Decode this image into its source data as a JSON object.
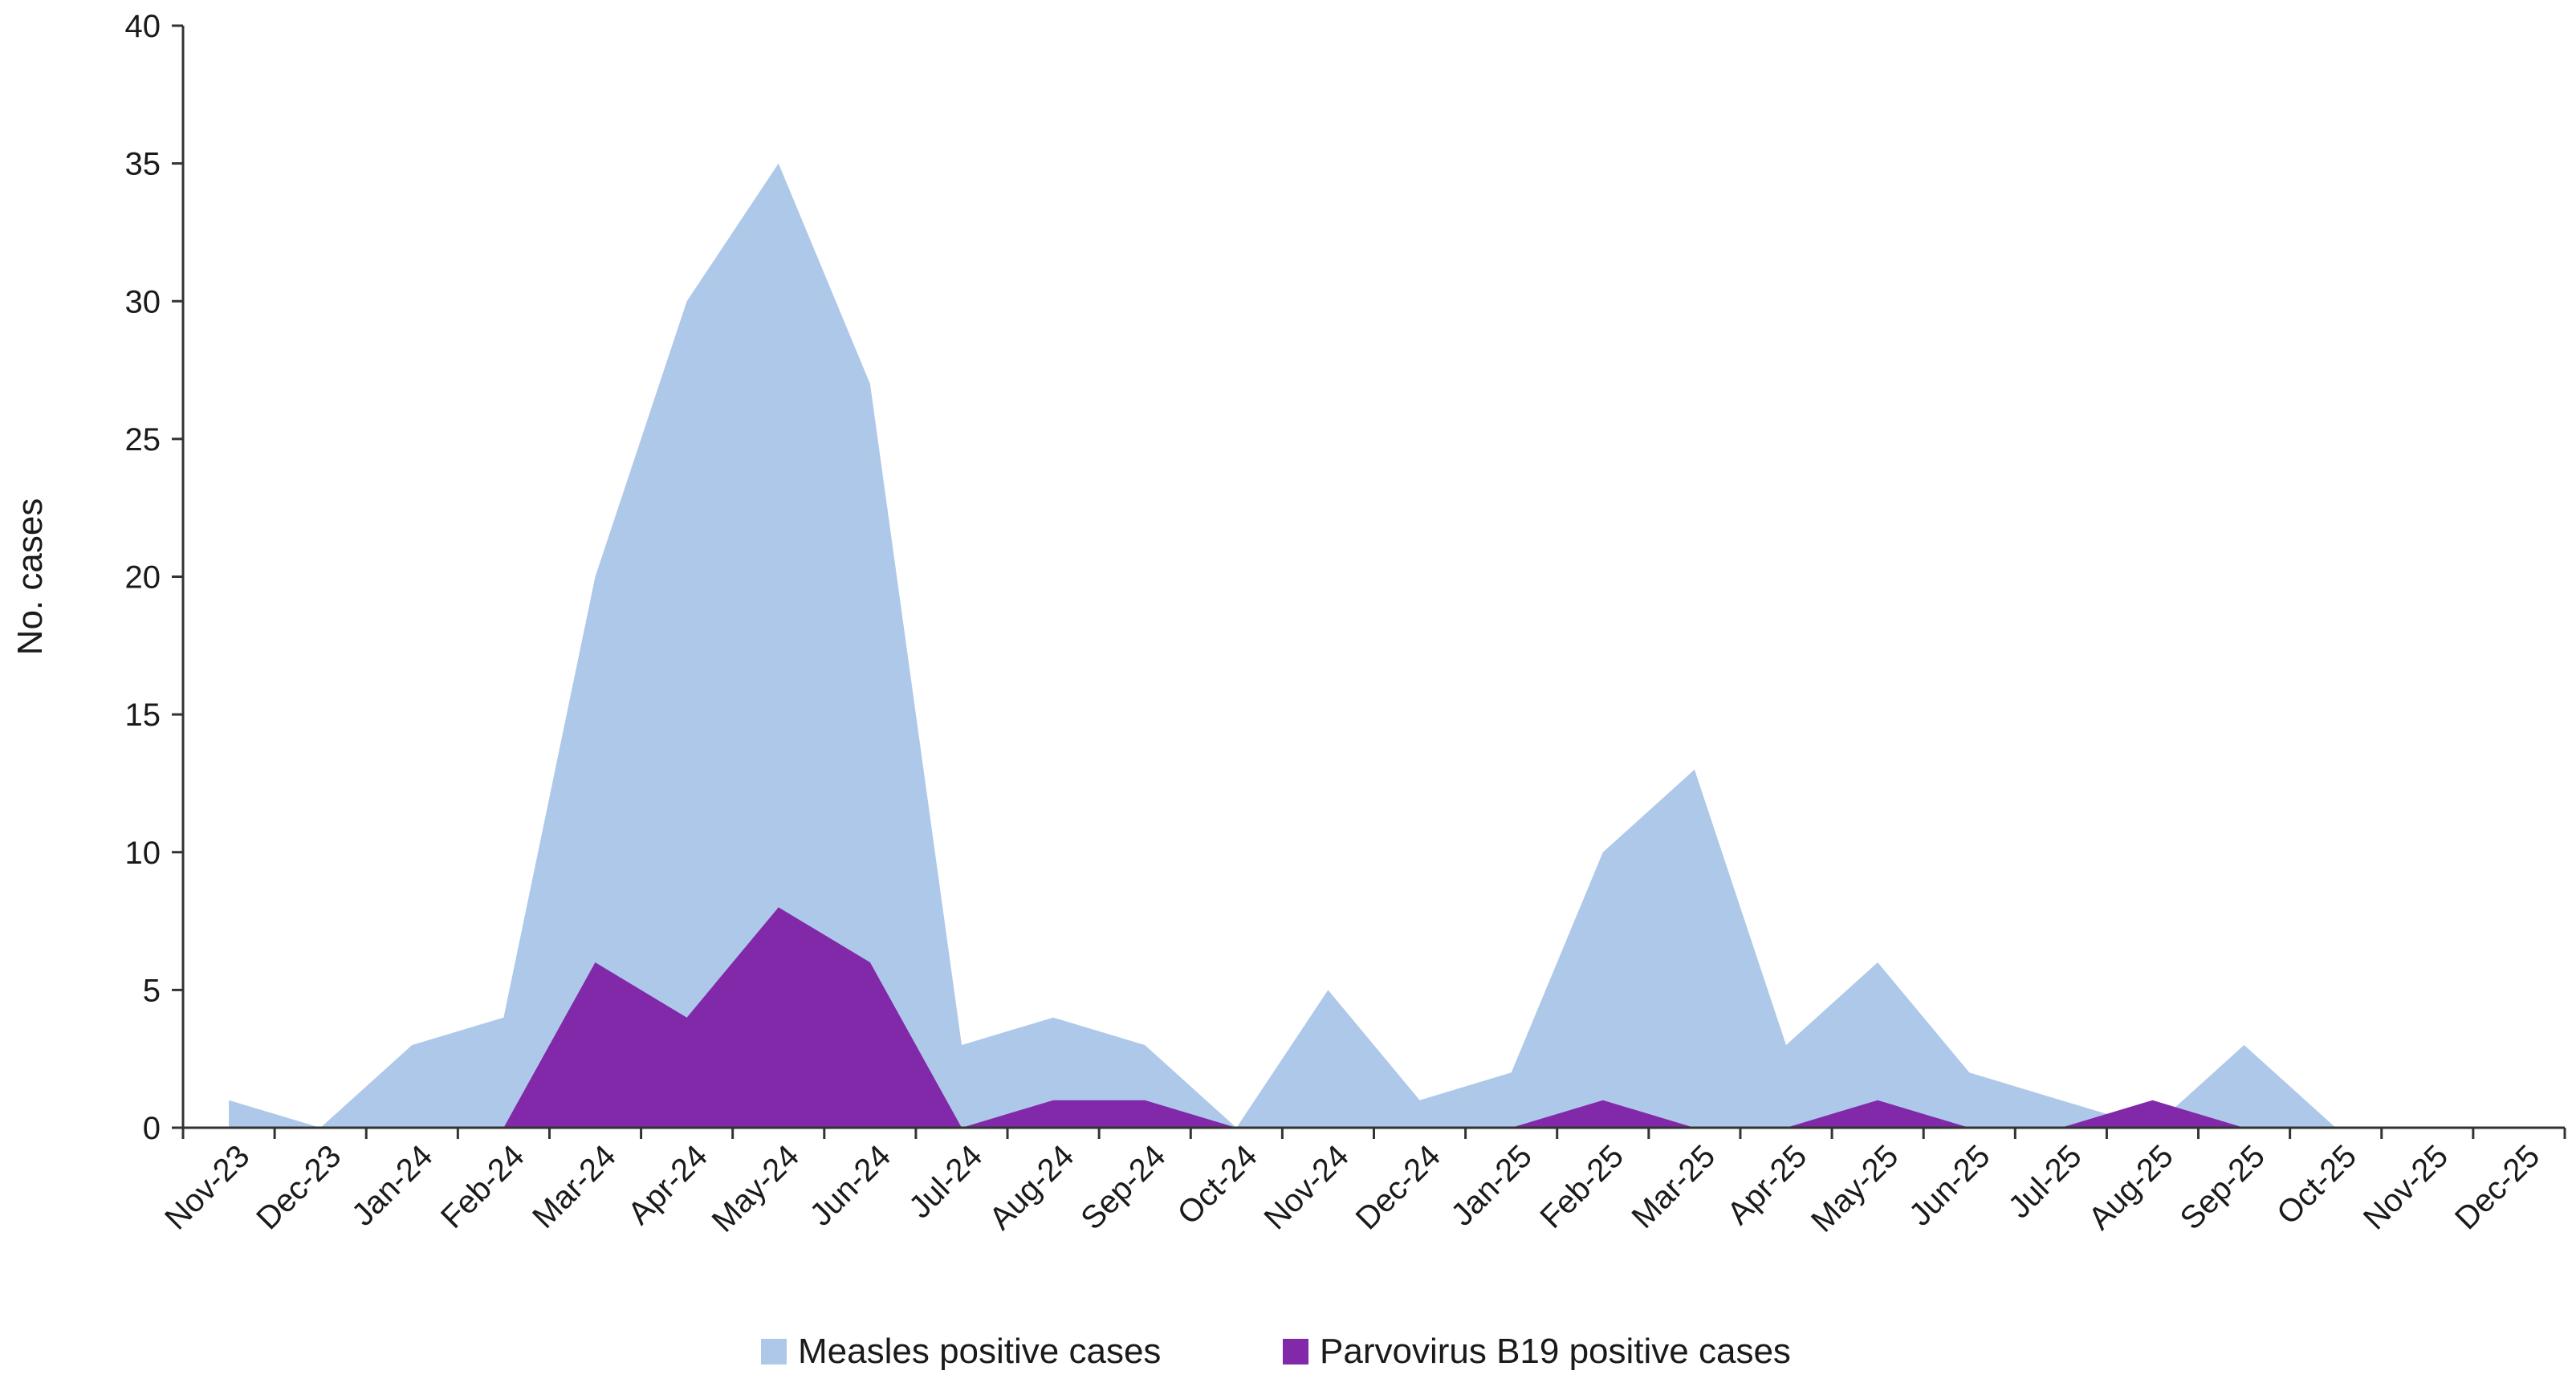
{
  "chart_data": {
    "type": "area",
    "ylabel": "No. cases",
    "ylim": [
      0,
      40
    ],
    "yticks": [
      0,
      5,
      10,
      15,
      20,
      25,
      30,
      35,
      40
    ],
    "grid": false,
    "legend_position": "bottom-center",
    "categories": [
      "Nov-23",
      "Dec-23",
      "Jan-24",
      "Feb-24",
      "Mar-24",
      "Apr-24",
      "May-24",
      "Jun-24",
      "Jul-24",
      "Aug-24",
      "Sep-24",
      "Oct-24",
      "Nov-24",
      "Dec-24",
      "Jan-25",
      "Feb-25",
      "Mar-25",
      "Apr-25",
      "May-25",
      "Jun-25",
      "Jul-25",
      "Aug-25",
      "Sep-25",
      "Oct-25",
      "Nov-25",
      "Dec-25"
    ],
    "series": [
      {
        "name": "Measles positive cases",
        "color": "#aec8ea",
        "values": [
          1,
          0,
          3,
          4,
          20,
          30,
          35,
          27,
          3,
          4,
          3,
          0,
          5,
          1,
          2,
          10,
          13,
          3,
          6,
          2,
          1,
          0,
          3,
          0,
          0,
          0
        ]
      },
      {
        "name": "Parvovirus B19 positive cases",
        "color": "#8129a8",
        "values": [
          0,
          0,
          0,
          0,
          6,
          4,
          8,
          6,
          0,
          1,
          1,
          0,
          0,
          0,
          0,
          1,
          0,
          0,
          1,
          0,
          0,
          1,
          0,
          0,
          0,
          0
        ]
      }
    ]
  }
}
